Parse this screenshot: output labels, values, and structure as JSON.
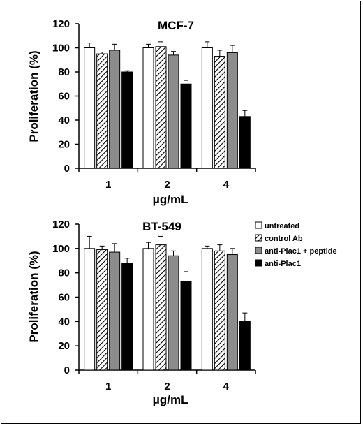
{
  "chart_data": [
    {
      "type": "bar",
      "title": "MCF-7",
      "xlabel": "μg/mL",
      "ylabel": "Proliferation (%)",
      "categories": [
        "1",
        "2",
        "4"
      ],
      "ylim": [
        0,
        120
      ],
      "yticks": [
        "0",
        "20",
        "40",
        "60",
        "80",
        "100",
        "120"
      ],
      "series": [
        {
          "name": "untreated",
          "values": [
            100,
            100,
            100
          ],
          "errors": [
            4,
            3,
            5
          ],
          "fill": "#ffffff"
        },
        {
          "name": "control Ab",
          "values": [
            95,
            101,
            93
          ],
          "errors": [
            1.5,
            4,
            5
          ],
          "fill": "hatch"
        },
        {
          "name": "anti-Plac1 + peptide",
          "values": [
            98,
            94,
            96
          ],
          "errors": [
            5,
            3,
            6
          ],
          "fill": "#8c8c8c"
        },
        {
          "name": "anti-Plac1",
          "values": [
            80,
            70,
            43
          ],
          "errors": [
            1,
            3,
            5
          ],
          "fill": "#000000"
        }
      ]
    },
    {
      "type": "bar",
      "title": "BT-549",
      "xlabel": "μg/mL",
      "ylabel": "Proliferation (%)",
      "categories": [
        "1",
        "2",
        "4"
      ],
      "ylim": [
        0,
        120
      ],
      "yticks": [
        "0",
        "20",
        "40",
        "60",
        "80",
        "100",
        "120"
      ],
      "legend_position": "top-right",
      "series": [
        {
          "name": "untreated",
          "values": [
            100,
            100,
            100
          ],
          "errors": [
            10,
            5,
            2
          ],
          "fill": "#ffffff"
        },
        {
          "name": "control Ab",
          "values": [
            99,
            103,
            98
          ],
          "errors": [
            3,
            7,
            5
          ],
          "fill": "hatch"
        },
        {
          "name": "anti-Plac1 + peptide",
          "values": [
            97,
            94,
            95
          ],
          "errors": [
            7,
            4,
            5
          ],
          "fill": "#8c8c8c"
        },
        {
          "name": "anti-Plac1",
          "values": [
            88,
            73,
            40
          ],
          "errors": [
            4,
            8,
            7
          ],
          "fill": "#000000"
        }
      ]
    }
  ]
}
